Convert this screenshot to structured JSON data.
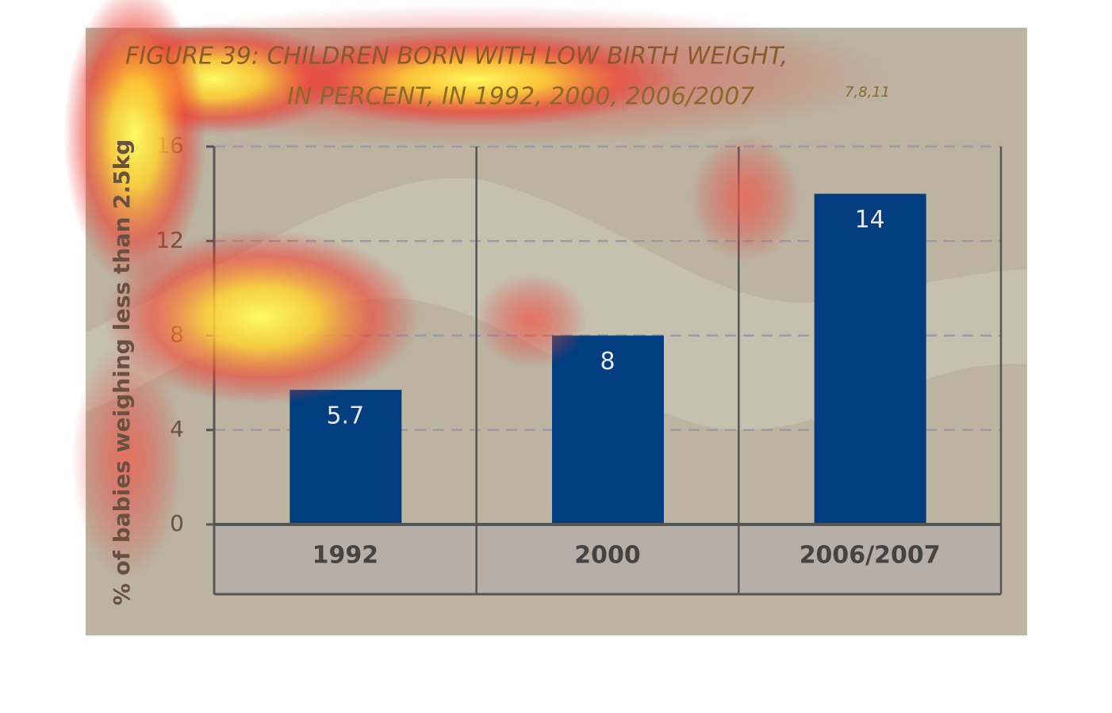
{
  "chart_data": {
    "type": "bar",
    "title": "FIGURE 39: CHILDREN BORN WITH LOW BIRTH WEIGHT,",
    "subtitle": "IN PERCENT, IN 1992, 2000, 2006/2007",
    "title_superscript": "7,8,11",
    "y_label": "% of babies weighing less than 2.5kg",
    "categories": [
      "1992",
      "2000",
      "2006/2007"
    ],
    "values": [
      5.7,
      8,
      14
    ],
    "color": "#023e7f",
    "ylim": [
      0,
      16
    ],
    "yticks": [
      0,
      4,
      8,
      12,
      16
    ],
    "grid": true
  }
}
